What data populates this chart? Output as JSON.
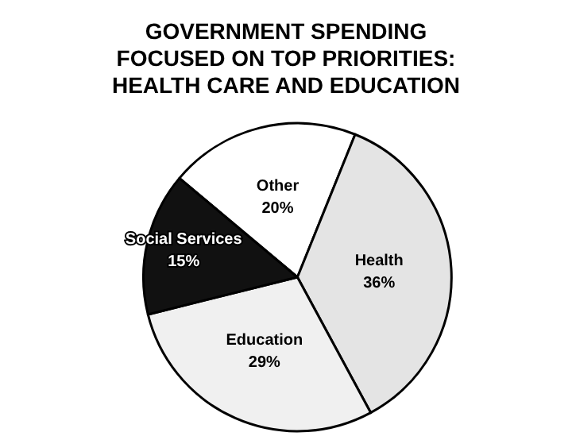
{
  "chart_data": {
    "type": "pie",
    "title": "GOVERNMENT SPENDING\nFOCUSED ON TOP PRIORITIES:\nHEALTH CARE AND EDUCATION",
    "categories": [
      "Other",
      "Health",
      "Education",
      "Social Services"
    ],
    "values": [
      20,
      36,
      29,
      15
    ],
    "value_labels": [
      "20%",
      "36%",
      "29%",
      "15%"
    ],
    "colors": [
      "#ffffff",
      "#e4e4e4",
      "#f0f0f0",
      "#111111"
    ],
    "legend": false
  }
}
